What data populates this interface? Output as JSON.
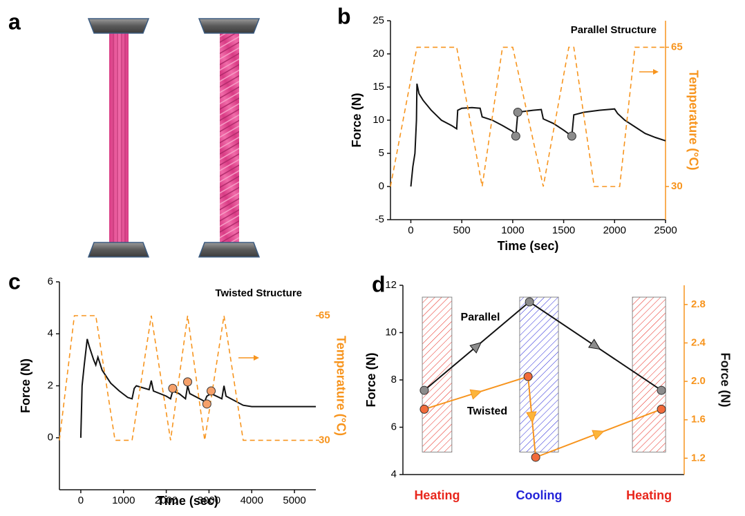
{
  "panel_labels": [
    "a",
    "b",
    "c",
    "d"
  ],
  "chart_data": [
    {
      "type": "line",
      "annotation": "Parallel Structure",
      "xlabel": "Time (sec)",
      "ylabel": "Force (N)",
      "y2label": "Temperature (°C)",
      "xlim": [
        -200,
        2500
      ],
      "xticks": [
        0,
        500,
        1000,
        1500,
        2000,
        2500
      ],
      "ylim": [
        -5,
        25
      ],
      "yticks": [
        -5,
        0,
        5,
        10,
        15,
        20,
        25
      ],
      "y2lim": [
        21.67,
        71.67
      ],
      "y2ticks": [
        65,
        30
      ],
      "y2color": "#f7941d",
      "y2label_color": "#f7941d",
      "series": [
        {
          "style": "line",
          "color": "#111111",
          "x": [
            0,
            20,
            40,
            55,
            60,
            80,
            120,
            200,
            300,
            400,
            450,
            460,
            500,
            600,
            680,
            700,
            760,
            800,
            900,
            1000,
            1030,
            1050,
            1100,
            1200,
            1280,
            1300,
            1400,
            1500,
            1580,
            1600,
            1700,
            1850,
            2000,
            2030,
            2100,
            2200,
            2300,
            2400,
            2500
          ],
          "values": [
            0,
            3,
            5,
            10,
            15.5,
            14,
            13,
            11.5,
            10,
            9.2,
            8.7,
            11.5,
            11.8,
            11.9,
            11.8,
            10.5,
            10.2,
            10,
            9.2,
            8.3,
            7.6,
            11.2,
            11.3,
            11.5,
            11.6,
            10.2,
            9.5,
            8.5,
            7.6,
            10.8,
            11.2,
            11.5,
            11.7,
            11,
            10,
            9,
            8,
            7.4,
            6.9
          ]
        },
        {
          "style": "dashed",
          "color": "#f7941d",
          "axis": "y2",
          "x": [
            -200,
            60,
            450,
            700,
            900,
            1000,
            1300,
            1550,
            1600,
            1800,
            2050,
            2200,
            2500
          ],
          "values": [
            30,
            65,
            65,
            30,
            65,
            65,
            30,
            65,
            65,
            30,
            30,
            65,
            65
          ]
        },
        {
          "style": "markers",
          "color": "#8c8c8c",
          "x": [
            1030,
            1050,
            1580
          ],
          "values": [
            7.6,
            11.2,
            7.6
          ]
        }
      ]
    },
    {
      "type": "line",
      "annotation": "Twisted Structure",
      "xlabel": "Time (sec)",
      "ylabel": "Force (N)",
      "y2label": "Temperature (°C)",
      "xlim": [
        -500,
        5500
      ],
      "xticks": [
        0,
        1000,
        2000,
        3000,
        4000,
        5000
      ],
      "ylim": [
        -2,
        6
      ],
      "yticks": [
        0,
        2,
        4,
        6
      ],
      "y2lim": [
        16.1,
        74.5
      ],
      "y2ticks": [
        65,
        30
      ],
      "y2color": "#f7941d",
      "y2label_color": "#f7941d",
      "series": [
        {
          "style": "line",
          "color": "#111111",
          "x": [
            0,
            30,
            80,
            150,
            200,
            300,
            350,
            400,
            500,
            700,
            900,
            1100,
            1200,
            1250,
            1300,
            1600,
            1650,
            1700,
            2000,
            2100,
            2150,
            2300,
            2450,
            2500,
            2550,
            2900,
            2950,
            3050,
            3300,
            3350,
            3400,
            3800,
            4000,
            5500
          ],
          "values": [
            0,
            2,
            2.8,
            3.8,
            3.5,
            3.0,
            2.8,
            3.1,
            2.6,
            2.1,
            1.8,
            1.55,
            1.5,
            1.9,
            2.0,
            1.85,
            2.2,
            1.8,
            1.6,
            1.5,
            1.8,
            1.7,
            1.5,
            2.0,
            1.7,
            1.4,
            1.6,
            1.7,
            1.5,
            2.0,
            1.6,
            1.25,
            1.2,
            1.2
          ]
        },
        {
          "style": "dashed",
          "color": "#f7941d",
          "axis": "y2",
          "x": [
            -500,
            -150,
            350,
            800,
            1200,
            1650,
            2100,
            2500,
            2900,
            3350,
            3800,
            5500
          ],
          "values": [
            30,
            65,
            65,
            30,
            30,
            65,
            30,
            65,
            30,
            65,
            30,
            30
          ]
        },
        {
          "style": "markers",
          "color": "#f5a06a",
          "x": [
            2150,
            2500,
            2950,
            3050
          ],
          "values": [
            1.9,
            2.15,
            1.3,
            1.8
          ]
        }
      ]
    },
    {
      "type": "line",
      "ylabel": "Force (N)",
      "y2label": "Force (N)",
      "xlim": [
        0,
        100
      ],
      "ylim": [
        4,
        12
      ],
      "yticks": [
        4,
        6,
        8,
        10,
        12
      ],
      "y2lim": [
        1.03,
        3.0
      ],
      "y2ticks": [
        1.2,
        1.6,
        {
          "value": 2,
          "label": "2.0"
        },
        2.4,
        2.8
      ],
      "y2color": "#f7941d",
      "y2label_color": "#111111",
      "regions": [
        {
          "label": "Heating",
          "color": "#e8261c",
          "x": [
            6.9,
            17.4
          ]
        },
        {
          "label": "Cooling",
          "color": "#2323d8",
          "x": [
            41.5,
            55.3
          ]
        },
        {
          "label": "Heating",
          "color": "#e8261c",
          "x": [
            81.6,
            93.4
          ]
        }
      ],
      "region_ylim": [
        4.95,
        11.5
      ],
      "series": [
        {
          "name": "Parallel",
          "style": "line_markers",
          "color": "#111111",
          "marker_color": "#8c8c8c",
          "x": [
            7.6,
            45,
            91.9
          ],
          "values": [
            7.56,
            11.3,
            7.56
          ]
        },
        {
          "name": "Twisted",
          "style": "line_markers",
          "color": "#f7941d",
          "marker_color": "#f26b3a",
          "axis": "y2",
          "x": [
            7.6,
            44.5,
            47.2,
            91.9
          ],
          "values": [
            1.71,
            2.05,
            1.21,
            1.71
          ]
        }
      ]
    }
  ]
}
